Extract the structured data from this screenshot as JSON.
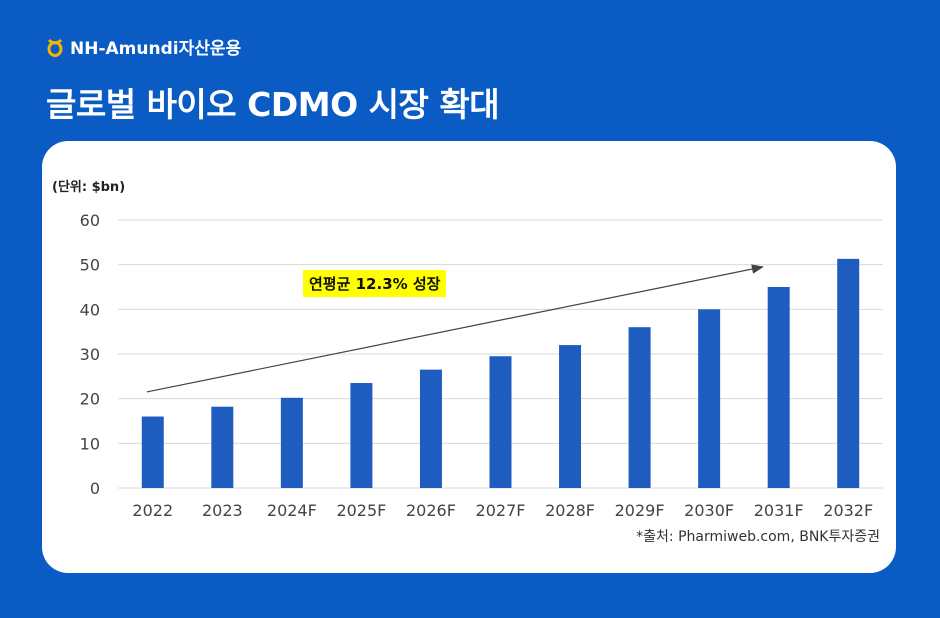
{
  "header": {
    "brand_name": "NH-Amundi자산운용",
    "title": "글로벌 바이오 CDMO 시장 확대"
  },
  "annotation": {
    "unit_label": "(단위: $bn)",
    "cagr_label": "연평균 12.3% 성장",
    "source": "*출처: Pharmiweb.com, BNK투자증권"
  },
  "colors": {
    "background": "#0a5bc4",
    "bar": "#1f5cbf",
    "highlight": "#ffff00",
    "brand_mark": "#f5b400"
  },
  "chart_data": {
    "type": "bar",
    "categories": [
      "2022",
      "2023",
      "2024F",
      "2025F",
      "2026F",
      "2027F",
      "2028F",
      "2029F",
      "2030F",
      "2031F",
      "2032F"
    ],
    "values": [
      16,
      18.2,
      20.2,
      23.5,
      26.5,
      29.5,
      32,
      36,
      40,
      45,
      51.3
    ],
    "yticks": [
      0,
      10,
      20,
      30,
      40,
      50,
      60
    ],
    "ylim": [
      0,
      60
    ],
    "grid": true,
    "trend_arrow": {
      "from_category": "2022",
      "from_value": 21.5,
      "to_category": "2031F",
      "to_value": 49.5
    }
  }
}
